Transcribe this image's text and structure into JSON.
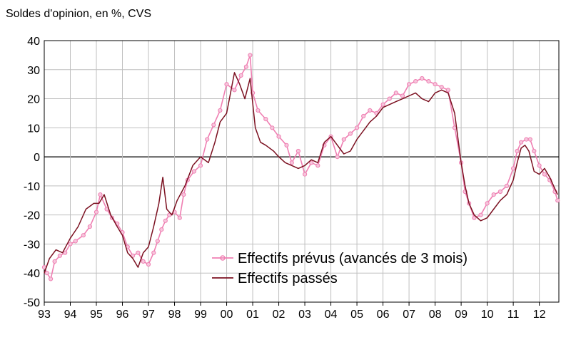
{
  "chart_data": {
    "type": "line",
    "title": "Soldes d'opinion, en %, CVS",
    "xlabel": "",
    "ylabel": "",
    "ylim": [
      -50,
      40
    ],
    "yticks": [
      40,
      30,
      20,
      10,
      0,
      -10,
      -20,
      -30,
      -40,
      -50
    ],
    "xlim": [
      1993,
      2012.75
    ],
    "xticks": [
      "93",
      "94",
      "95",
      "96",
      "97",
      "98",
      "99",
      "00",
      "01",
      "02",
      "03",
      "04",
      "05",
      "06",
      "07",
      "08",
      "09",
      "10",
      "11",
      "12"
    ],
    "grid": true,
    "legend": "bottom-right",
    "colors": {
      "prevus": "#ef7fb2",
      "passes": "#7b1020",
      "grid": "#bfbfbf",
      "axis": "#000000",
      "zero": "#000000"
    },
    "series": [
      {
        "name": "Effectifs prévus (avancés de 3 mois)",
        "style": "line-markers",
        "x": [
          1993,
          1993.1,
          1993.25,
          1993.4,
          1993.6,
          1993.8,
          1994,
          1994.2,
          1994.5,
          1994.75,
          1995,
          1995.15,
          1995.4,
          1995.6,
          1995.8,
          1996,
          1996.2,
          1996.4,
          1996.6,
          1996.8,
          1997,
          1997.2,
          1997.35,
          1997.5,
          1997.65,
          1997.8,
          1998,
          1998.2,
          1998.35,
          1998.5,
          1998.75,
          1999,
          1999.25,
          1999.5,
          1999.75,
          2000,
          2000.3,
          2000.55,
          2000.75,
          2000.9,
          2001,
          2001.2,
          2001.5,
          2001.75,
          2002,
          2002.3,
          2002.5,
          2002.75,
          2003,
          2003.25,
          2003.5,
          2003.75,
          2004,
          2004.25,
          2004.5,
          2004.75,
          2005,
          2005.25,
          2005.5,
          2005.75,
          2006,
          2006.25,
          2006.5,
          2006.75,
          2007,
          2007.25,
          2007.5,
          2007.75,
          2008,
          2008.25,
          2008.5,
          2008.75,
          2009,
          2009.15,
          2009.3,
          2009.5,
          2009.75,
          2010,
          2010.25,
          2010.5,
          2010.75,
          2011,
          2011.15,
          2011.3,
          2011.5,
          2011.65,
          2011.8,
          2012,
          2012.2,
          2012.4,
          2012.6,
          2012.7
        ],
        "values": [
          -38,
          -40,
          -42,
          -36,
          -34,
          -33,
          -30,
          -29,
          -27,
          -24,
          -19,
          -13,
          -18,
          -21,
          -23,
          -26,
          -31,
          -34,
          -33,
          -36,
          -37,
          -33,
          -29,
          -25,
          -22,
          -20,
          -19,
          -21,
          -13,
          -8,
          -5,
          -3,
          6,
          11,
          16,
          25,
          23,
          28,
          31,
          35,
          22,
          16,
          13,
          10,
          7,
          4,
          -2,
          2,
          -6,
          -2,
          -3,
          4,
          7,
          0,
          6,
          8,
          10,
          14,
          16,
          15,
          18,
          20,
          22,
          21,
          25,
          26,
          27,
          26,
          25,
          24,
          23,
          10,
          -2,
          -12,
          -16,
          -21,
          -20,
          -16,
          -13,
          -12,
          -10,
          -4,
          2,
          5,
          6,
          6,
          2,
          -3,
          -6,
          -8,
          -12,
          -15
        ]
      },
      {
        "name": "Effectifs passés",
        "style": "line",
        "x": [
          1993,
          1993.2,
          1993.45,
          1993.7,
          1994,
          1994.3,
          1994.6,
          1994.9,
          1995.1,
          1995.3,
          1995.55,
          1995.8,
          1996,
          1996.2,
          1996.4,
          1996.6,
          1996.8,
          1997,
          1997.2,
          1997.4,
          1997.55,
          1997.7,
          1997.9,
          1998.1,
          1998.4,
          1998.7,
          1999,
          1999.3,
          1999.55,
          1999.75,
          2000,
          2000.3,
          2000.5,
          2000.7,
          2000.9,
          2001.1,
          2001.3,
          2001.5,
          2001.8,
          2002,
          2002.25,
          2002.5,
          2002.75,
          2003,
          2003.25,
          2003.5,
          2003.75,
          2004,
          2004.25,
          2004.5,
          2004.75,
          2005,
          2005.25,
          2005.5,
          2005.75,
          2006,
          2006.25,
          2006.5,
          2006.75,
          2007,
          2007.25,
          2007.5,
          2007.75,
          2008,
          2008.25,
          2008.5,
          2008.75,
          2009,
          2009.15,
          2009.3,
          2009.5,
          2009.75,
          2010,
          2010.25,
          2010.5,
          2010.75,
          2011,
          2011.15,
          2011.3,
          2011.45,
          2011.6,
          2011.8,
          2012,
          2012.2,
          2012.4,
          2012.6,
          2012.7
        ],
        "values": [
          -40,
          -35,
          -32,
          -33,
          -28,
          -24,
          -18,
          -16,
          -16,
          -13,
          -20,
          -24,
          -27,
          -33,
          -35,
          -38,
          -33,
          -31,
          -24,
          -16,
          -7,
          -18,
          -20,
          -15,
          -10,
          -3,
          0,
          -2,
          5,
          12,
          15,
          29,
          25,
          20,
          27,
          10,
          5,
          4,
          2,
          0,
          -2,
          -3,
          -4,
          -3,
          -1,
          -2,
          5,
          7,
          4,
          1,
          2,
          6,
          9,
          12,
          14,
          17,
          18,
          19,
          20,
          21,
          22,
          20,
          19,
          22,
          23,
          22,
          15,
          -2,
          -10,
          -16,
          -20,
          -22,
          -21,
          -18,
          -15,
          -13,
          -8,
          -2,
          3,
          4,
          2,
          -5,
          -6,
          -4,
          -7,
          -11,
          -13
        ]
      }
    ]
  }
}
